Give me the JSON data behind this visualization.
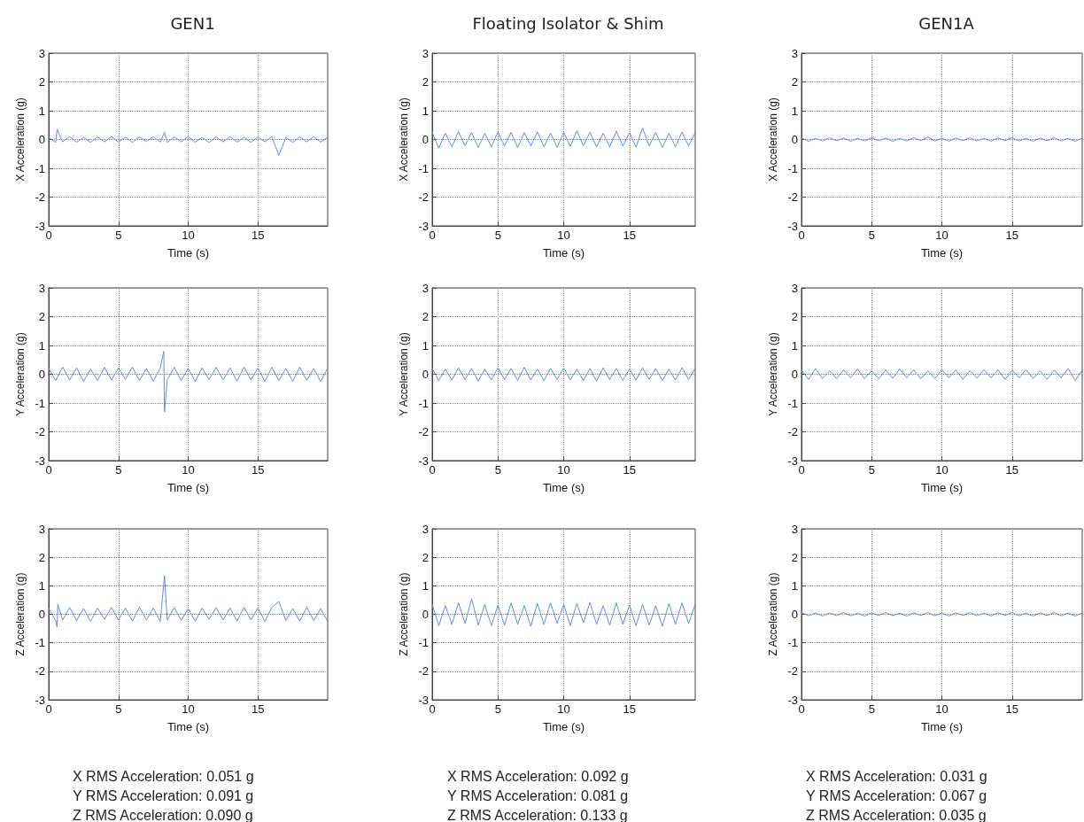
{
  "chart_data": [
    {
      "type": "line",
      "title": "GEN1",
      "xlabel": "Time (s)",
      "ylabel": "X Acceleration (g)",
      "xlim": [
        0,
        20
      ],
      "xticks": [
        0,
        5,
        10,
        15
      ],
      "ylim": [
        -3,
        3
      ],
      "yticks": [
        -3,
        -2,
        -1,
        0,
        1,
        2,
        3
      ],
      "grid": true,
      "marker": "none",
      "line_style": "solid",
      "x": [
        0,
        0.5,
        0.6,
        1,
        1.5,
        2,
        2.5,
        3,
        3.5,
        4,
        4.5,
        5,
        5.5,
        6,
        6.5,
        7,
        7.5,
        8,
        8.3,
        8.5,
        9,
        9.5,
        10,
        10.5,
        11,
        11.5,
        12,
        12.5,
        13,
        13.5,
        14,
        14.5,
        15,
        15.5,
        16,
        16.5,
        17,
        17.5,
        18,
        18.5,
        19,
        19.5,
        20
      ],
      "series": [
        {
          "color": "#5b8def",
          "values": [
            0.08,
            -0.1,
            0.35,
            -0.08,
            0.1,
            -0.09,
            0.07,
            -0.1,
            0.09,
            -0.08,
            0.1,
            -0.09,
            0.08,
            -0.1,
            0.09,
            -0.07,
            0.1,
            -0.09,
            0.25,
            -0.1,
            0.09,
            -0.08,
            0.1,
            -0.09,
            0.07,
            -0.1,
            0.09,
            -0.08,
            0.1,
            -0.09,
            0.08,
            -0.1,
            0.09,
            -0.08,
            0.1,
            -0.55,
            0.07,
            -0.1,
            0.09,
            -0.08,
            0.1,
            -0.09,
            0.08
          ]
        }
      ]
    },
    {
      "type": "line",
      "title": "Floating Isolator & Shim",
      "xlabel": "Time (s)",
      "ylabel": "X Acceleration (g)",
      "xlim": [
        0,
        20
      ],
      "xticks": [
        0,
        5,
        10,
        15
      ],
      "ylim": [
        -3,
        3
      ],
      "yticks": [
        -3,
        -2,
        -1,
        0,
        1,
        2,
        3
      ],
      "grid": true,
      "marker": "none",
      "line_style": "solid",
      "x": [
        0,
        0.5,
        1,
        1.5,
        2,
        2.5,
        3,
        3.5,
        4,
        4.5,
        5,
        5.5,
        6,
        6.5,
        7,
        7.5,
        8,
        8.5,
        9,
        9.5,
        10,
        10.5,
        11,
        11.5,
        12,
        12.5,
        13,
        13.5,
        14,
        14.5,
        15,
        15.5,
        16,
        16.5,
        17,
        17.5,
        18,
        18.5,
        19,
        19.5,
        20
      ],
      "series": [
        {
          "color": "#5b8def",
          "values": [
            0.25,
            -0.3,
            0.22,
            -0.25,
            0.28,
            -0.22,
            0.25,
            -0.28,
            0.22,
            -0.25,
            0.26,
            -0.22,
            0.25,
            -0.28,
            0.24,
            -0.22,
            0.26,
            -0.25,
            0.22,
            -0.28,
            0.25,
            -0.24,
            0.3,
            -0.22,
            0.25,
            -0.26,
            0.22,
            -0.25,
            0.28,
            -0.22,
            0.24,
            -0.26,
            0.4,
            -0.22,
            0.25,
            -0.28,
            0.22,
            -0.25,
            0.26,
            -0.22,
            0.24
          ]
        }
      ]
    },
    {
      "type": "line",
      "title": "GEN1A",
      "xlabel": "Time (s)",
      "ylabel": "X Acceleration (g)",
      "xlim": [
        0,
        20
      ],
      "xticks": [
        0,
        5,
        10,
        15
      ],
      "ylim": [
        -3,
        3
      ],
      "yticks": [
        -3,
        -2,
        -1,
        0,
        1,
        2,
        3
      ],
      "grid": true,
      "marker": "none",
      "line_style": "solid",
      "x": [
        0,
        0.5,
        1,
        1.5,
        2,
        2.5,
        3,
        3.5,
        4,
        4.5,
        5,
        5.5,
        6,
        6.5,
        7,
        7.5,
        8,
        8.5,
        9,
        9.5,
        10,
        10.5,
        11,
        11.5,
        12,
        12.5,
        13,
        13.5,
        14,
        14.5,
        15,
        15.5,
        16,
        16.5,
        17,
        17.5,
        18,
        18.5,
        19,
        19.5,
        20
      ],
      "series": [
        {
          "color": "#5b8def",
          "values": [
            0.05,
            -0.06,
            0.04,
            -0.05,
            0.06,
            -0.04,
            0.05,
            -0.06,
            0.04,
            -0.05,
            0.06,
            -0.04,
            0.05,
            -0.06,
            0.04,
            -0.05,
            0.06,
            -0.04,
            0.08,
            -0.05,
            0.04,
            -0.06,
            0.05,
            -0.04,
            0.06,
            -0.05,
            0.04,
            -0.06,
            0.05,
            -0.04,
            0.06,
            -0.05,
            0.04,
            -0.06,
            0.05,
            -0.04,
            0.06,
            -0.05,
            0.04,
            -0.06,
            0.05
          ]
        }
      ]
    },
    {
      "type": "line",
      "xlabel": "Time (s)",
      "ylabel": "Y Acceleration (g)",
      "xlim": [
        0,
        20
      ],
      "xticks": [
        0,
        5,
        10,
        15
      ],
      "ylim": [
        -3,
        3
      ],
      "yticks": [
        -3,
        -2,
        -1,
        0,
        1,
        2,
        3
      ],
      "grid": true,
      "marker": "none",
      "line_style": "solid",
      "x": [
        0,
        0.5,
        1,
        1.5,
        2,
        2.5,
        3,
        3.5,
        4,
        4.5,
        5,
        5.5,
        6,
        6.5,
        7,
        7.5,
        8,
        8.25,
        8.3,
        8.5,
        9,
        9.5,
        10,
        10.5,
        11,
        11.5,
        12,
        12.5,
        13,
        13.5,
        14,
        14.5,
        15,
        15.5,
        16,
        16.5,
        17,
        17.5,
        18,
        18.5,
        19,
        19.5,
        20
      ],
      "series": [
        {
          "color": "#5b8def",
          "values": [
            0.2,
            -0.22,
            0.25,
            -0.2,
            0.22,
            -0.25,
            0.18,
            -0.22,
            0.24,
            -0.2,
            0.22,
            -0.18,
            0.25,
            -0.22,
            0.2,
            -0.24,
            0.22,
            0.8,
            -1.3,
            -0.2,
            0.24,
            -0.22,
            0.2,
            -0.25,
            0.22,
            -0.18,
            0.24,
            -0.2,
            0.22,
            -0.24,
            0.25,
            -0.2,
            0.22,
            -0.25,
            0.24,
            -0.22,
            0.2,
            -0.24,
            0.25,
            -0.22,
            0.2,
            -0.25,
            0.22
          ]
        }
      ]
    },
    {
      "type": "line",
      "xlabel": "Time (s)",
      "ylabel": "Y Acceleration (g)",
      "xlim": [
        0,
        20
      ],
      "xticks": [
        0,
        5,
        10,
        15
      ],
      "ylim": [
        -3,
        3
      ],
      "yticks": [
        -3,
        -2,
        -1,
        0,
        1,
        2,
        3
      ],
      "grid": true,
      "marker": "none",
      "line_style": "solid",
      "x": [
        0,
        0.5,
        1,
        1.5,
        2,
        2.5,
        3,
        3.5,
        4,
        4.5,
        5,
        5.5,
        6,
        6.5,
        7,
        7.5,
        8,
        8.5,
        9,
        9.5,
        10,
        10.5,
        11,
        11.5,
        12,
        12.5,
        13,
        13.5,
        14,
        14.5,
        15,
        15.5,
        16,
        16.5,
        17,
        17.5,
        18,
        18.5,
        19,
        19.5,
        20
      ],
      "series": [
        {
          "color": "#5b8def",
          "values": [
            0.2,
            -0.22,
            0.18,
            -0.2,
            0.22,
            -0.18,
            0.2,
            -0.24,
            0.18,
            -0.2,
            0.22,
            -0.18,
            0.2,
            -0.22,
            0.24,
            -0.2,
            0.18,
            -0.22,
            0.2,
            -0.18,
            0.22,
            -0.2,
            0.18,
            -0.22,
            0.2,
            -0.24,
            0.22,
            -0.18,
            0.2,
            -0.22,
            0.18,
            -0.2,
            0.22,
            -0.18,
            0.2,
            -0.22,
            0.18,
            -0.2,
            0.22,
            -0.18,
            0.2
          ]
        }
      ]
    },
    {
      "type": "line",
      "xlabel": "Time (s)",
      "ylabel": "Y Acceleration (g)",
      "xlim": [
        0,
        20
      ],
      "xticks": [
        0,
        5,
        10,
        15
      ],
      "ylim": [
        -3,
        3
      ],
      "yticks": [
        -3,
        -2,
        -1,
        0,
        1,
        2,
        3
      ],
      "grid": true,
      "marker": "none",
      "line_style": "solid",
      "x": [
        0,
        0.5,
        1,
        1.5,
        2,
        2.5,
        3,
        3.5,
        4,
        4.5,
        5,
        5.5,
        6,
        6.5,
        7,
        7.5,
        8,
        8.5,
        9,
        9.5,
        10,
        10.5,
        11,
        11.5,
        12,
        12.5,
        13,
        13.5,
        14,
        14.5,
        15,
        15.5,
        16,
        16.5,
        17,
        17.5,
        18,
        18.5,
        19,
        19.5,
        20
      ],
      "series": [
        {
          "color": "#5b8def",
          "values": [
            0.15,
            -0.18,
            0.2,
            -0.15,
            0.12,
            -0.16,
            0.15,
            -0.12,
            0.18,
            -0.15,
            0.12,
            -0.16,
            0.15,
            -0.14,
            0.18,
            -0.12,
            0.15,
            -0.16,
            0.12,
            -0.15,
            0.16,
            -0.12,
            0.15,
            -0.18,
            0.12,
            -0.14,
            0.16,
            -0.12,
            0.15,
            -0.18,
            0.14,
            -0.12,
            0.16,
            -0.15,
            0.12,
            -0.18,
            0.15,
            -0.12,
            0.2,
            -0.22,
            0.15
          ]
        }
      ]
    },
    {
      "type": "line",
      "xlabel": "Time (s)",
      "ylabel": "Z Acceleration (g)",
      "xlim": [
        0,
        20
      ],
      "xticks": [
        0,
        5,
        10,
        15
      ],
      "ylim": [
        -3,
        3
      ],
      "yticks": [
        -3,
        -2,
        -1,
        0,
        1,
        2,
        3
      ],
      "grid": true,
      "marker": "none",
      "line_style": "solid",
      "annotations": [
        "X RMS Acceleration: 0.051 g",
        "Y RMS Acceleration: 0.091 g",
        "Z RMS Acceleration: 0.090 g"
      ],
      "x": [
        0,
        0.5,
        0.6,
        0.65,
        1,
        1.5,
        2,
        2.5,
        3,
        3.5,
        4,
        4.5,
        5,
        5.5,
        6,
        6.5,
        7,
        7.5,
        8,
        8.3,
        8.5,
        9,
        9.5,
        10,
        10.5,
        11,
        11.5,
        12,
        12.5,
        13,
        13.5,
        14,
        14.5,
        15,
        15.5,
        16,
        16.5,
        17,
        17.5,
        18,
        18.5,
        19,
        19.5,
        20
      ],
      "series": [
        {
          "color": "#5b8def",
          "values": [
            0.2,
            -0.22,
            -0.45,
            0.35,
            -0.2,
            0.24,
            -0.22,
            0.2,
            -0.25,
            0.22,
            -0.18,
            0.24,
            -0.2,
            0.22,
            -0.24,
            0.25,
            -0.2,
            0.22,
            -0.25,
            1.35,
            -0.2,
            0.24,
            -0.22,
            0.2,
            -0.25,
            0.22,
            -0.18,
            0.24,
            -0.2,
            0.22,
            -0.24,
            0.25,
            -0.2,
            0.22,
            -0.25,
            0.24,
            0.45,
            -0.22,
            0.2,
            -0.24,
            0.25,
            -0.22,
            0.2,
            -0.25
          ]
        }
      ]
    },
    {
      "type": "line",
      "xlabel": "Time (s)",
      "ylabel": "Z Acceleration (g)",
      "xlim": [
        0,
        20
      ],
      "xticks": [
        0,
        5,
        10,
        15
      ],
      "ylim": [
        -3,
        3
      ],
      "yticks": [
        -3,
        -2,
        -1,
        0,
        1,
        2,
        3
      ],
      "grid": true,
      "marker": "none",
      "line_style": "solid",
      "annotations": [
        "X RMS Acceleration: 0.092 g",
        "Y RMS Acceleration: 0.081 g",
        "Z RMS Acceleration: 0.133 g"
      ],
      "x": [
        0,
        0.5,
        1,
        1.5,
        2,
        2.5,
        3,
        3.5,
        4,
        4.5,
        5,
        5.5,
        6,
        6.5,
        7,
        7.5,
        8,
        8.5,
        9,
        9.5,
        10,
        10.5,
        11,
        11.5,
        12,
        12.5,
        13,
        13.5,
        14,
        14.5,
        15,
        15.5,
        16,
        16.5,
        17,
        17.5,
        18,
        18.5,
        19,
        19.5,
        20
      ],
      "series": [
        {
          "color": "#5b8def",
          "values": [
            0.35,
            -0.4,
            0.3,
            -0.35,
            0.4,
            -0.32,
            0.55,
            -0.38,
            0.35,
            -0.4,
            0.32,
            -0.38,
            0.4,
            -0.35,
            0.3,
            -0.42,
            0.38,
            -0.35,
            0.4,
            -0.32,
            0.35,
            -0.4,
            0.38,
            -0.3,
            0.42,
            -0.35,
            0.3,
            -0.38,
            0.4,
            -0.35,
            0.32,
            -0.4,
            0.35,
            -0.38,
            0.3,
            -0.42,
            0.38,
            -0.35,
            0.4,
            -0.32,
            0.35
          ]
        }
      ]
    },
    {
      "type": "line",
      "xlabel": "Time (s)",
      "ylabel": "Z Acceleration (g)",
      "xlim": [
        0,
        20
      ],
      "xticks": [
        0,
        5,
        10,
        15
      ],
      "ylim": [
        -3,
        3
      ],
      "yticks": [
        -3,
        -2,
        -1,
        0,
        1,
        2,
        3
      ],
      "grid": true,
      "marker": "none",
      "line_style": "solid",
      "annotations": [
        "X RMS Acceleration: 0.031 g",
        "Y RMS Acceleration: 0.067 g",
        "Z RMS Acceleration: 0.035 g"
      ],
      "x": [
        0,
        0.5,
        1,
        1.5,
        2,
        2.5,
        3,
        3.5,
        4,
        4.5,
        5,
        5.5,
        6,
        6.5,
        7,
        7.5,
        8,
        8.5,
        9,
        9.5,
        10,
        10.5,
        11,
        11.5,
        12,
        12.5,
        13,
        13.5,
        14,
        14.5,
        15,
        15.5,
        16,
        16.5,
        17,
        17.5,
        18,
        18.5,
        19,
        19.5,
        20
      ],
      "series": [
        {
          "color": "#5b8def",
          "values": [
            0.06,
            -0.05,
            0.04,
            -0.06,
            0.05,
            -0.04,
            0.06,
            -0.05,
            0.04,
            -0.06,
            0.05,
            -0.04,
            0.06,
            -0.05,
            0.04,
            -0.06,
            0.05,
            -0.04,
            0.06,
            -0.05,
            0.04,
            -0.06,
            0.05,
            -0.04,
            0.06,
            -0.05,
            0.04,
            -0.06,
            0.05,
            -0.04,
            0.06,
            -0.05,
            0.04,
            -0.06,
            0.05,
            -0.04,
            0.06,
            -0.05,
            0.04,
            -0.06,
            0.05
          ]
        }
      ]
    }
  ]
}
